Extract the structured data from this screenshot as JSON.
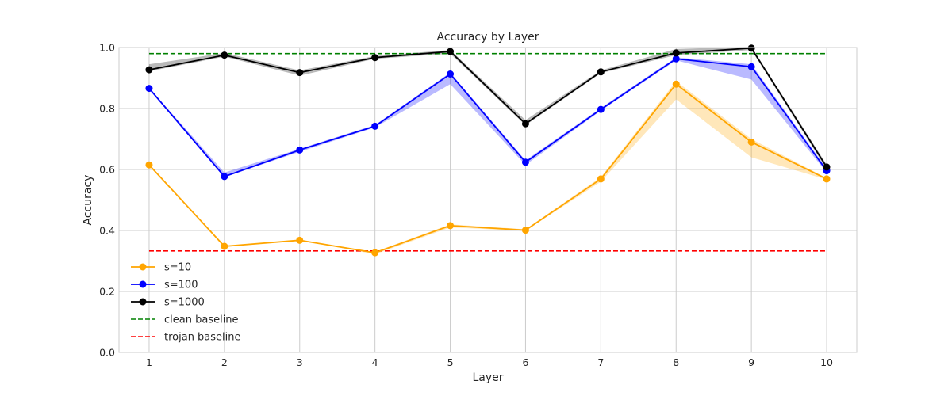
{
  "chart_data": {
    "type": "line",
    "title": "Accuracy by Layer",
    "xlabel": "Layer",
    "ylabel": "Accuracy",
    "x": [
      1,
      2,
      3,
      4,
      5,
      6,
      7,
      8,
      9,
      10
    ],
    "xlim": [
      0.6,
      10.4
    ],
    "ylim": [
      0.0,
      1.0
    ],
    "yticks": [
      0.0,
      0.2,
      0.4,
      0.6,
      0.8,
      1.0
    ],
    "ytick_labels": [
      "0.0",
      "0.2",
      "0.4",
      "0.6",
      "0.8",
      "1.0"
    ],
    "xtick_labels": [
      "1",
      "2",
      "3",
      "4",
      "5",
      "6",
      "7",
      "8",
      "9",
      "10"
    ],
    "grid": true,
    "legend_position": "lower-left",
    "series": [
      {
        "name": "s=10",
        "color": "#ffa500",
        "values": [
          0.615,
          0.348,
          0.368,
          0.327,
          0.416,
          0.401,
          0.569,
          0.88,
          0.69,
          0.569
        ],
        "lower": [
          0.615,
          0.348,
          0.368,
          0.322,
          0.41,
          0.399,
          0.56,
          0.83,
          0.64,
          0.567
        ],
        "upper": [
          0.615,
          0.348,
          0.368,
          0.33,
          0.42,
          0.404,
          0.575,
          0.89,
          0.7,
          0.572
        ]
      },
      {
        "name": "s=100",
        "color": "#0000ff",
        "values": [
          0.866,
          0.577,
          0.664,
          0.742,
          0.913,
          0.624,
          0.797,
          0.963,
          0.937,
          0.596
        ],
        "lower": [
          0.862,
          0.575,
          0.658,
          0.738,
          0.88,
          0.615,
          0.793,
          0.958,
          0.895,
          0.59
        ],
        "upper": [
          0.868,
          0.59,
          0.668,
          0.746,
          0.918,
          0.63,
          0.802,
          0.968,
          0.945,
          0.603
        ]
      },
      {
        "name": "s=1000",
        "color": "#000000",
        "values": [
          0.927,
          0.975,
          0.918,
          0.967,
          0.987,
          0.75,
          0.92,
          0.982,
          0.998,
          0.608
        ],
        "lower": [
          0.922,
          0.97,
          0.908,
          0.963,
          0.98,
          0.745,
          0.916,
          0.975,
          0.992,
          0.6
        ],
        "upper": [
          0.945,
          0.982,
          0.925,
          0.972,
          0.992,
          0.762,
          0.925,
          0.995,
          1.003,
          0.616
        ]
      }
    ],
    "baselines": [
      {
        "name": "clean baseline",
        "color": "#008000",
        "value": 0.98
      },
      {
        "name": "trojan baseline",
        "color": "#ff0000",
        "value": 0.333
      }
    ]
  }
}
